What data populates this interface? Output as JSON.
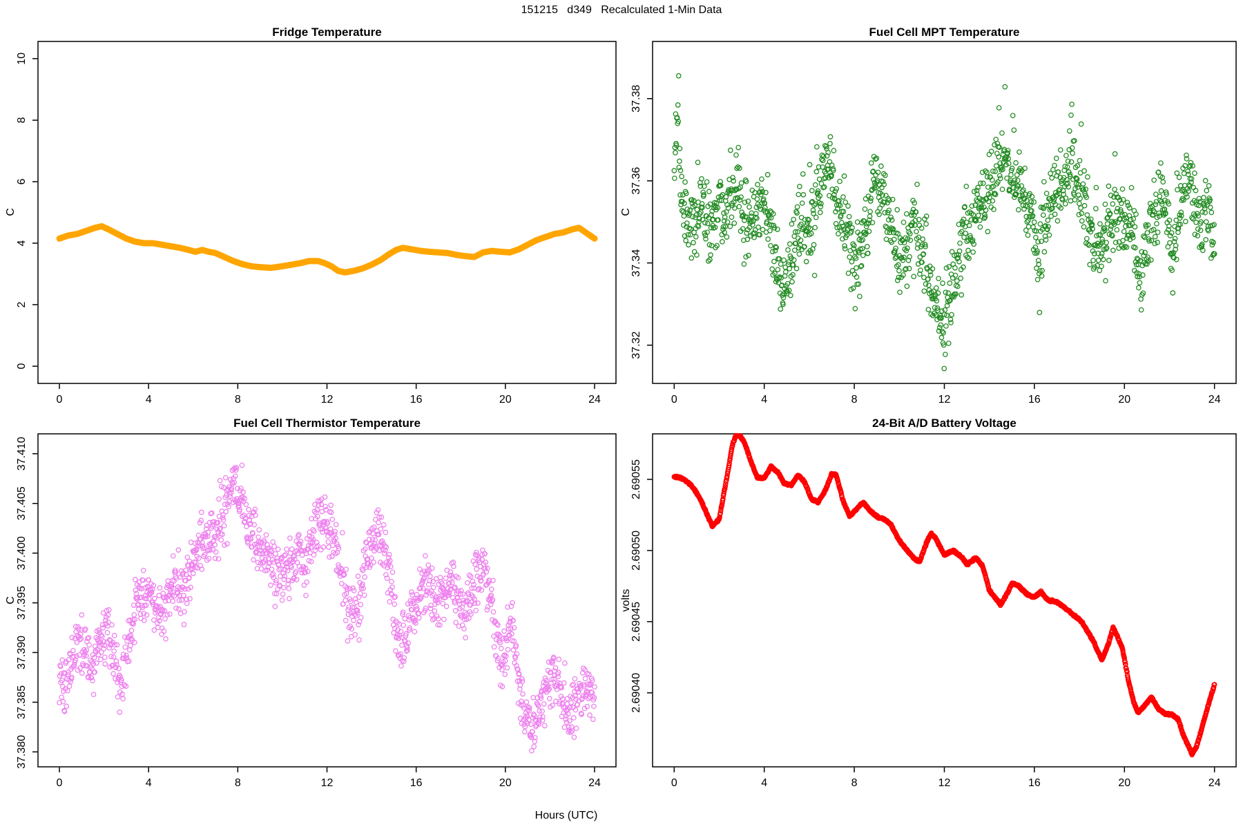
{
  "header": {
    "title": "151215   d349   Recalculated 1-Min Data"
  },
  "xlabel": "Hours (UTC)",
  "chart_data": [
    {
      "id": "fridge",
      "type": "line",
      "title": "Fridge Temperature",
      "ylabel": "C",
      "x_unit": "Hours (UTC)",
      "xlim": [
        -0.96,
        24.96
      ],
      "ylim": [
        -0.56,
        10.56
      ],
      "xticks": [
        0,
        4,
        8,
        12,
        16,
        20,
        24
      ],
      "xtick_labels": [
        "0",
        "4",
        "8",
        "12",
        "16",
        "20",
        "24"
      ],
      "yticks": [
        0,
        2,
        4,
        6,
        8,
        10
      ],
      "ytick_labels": [
        "0",
        "2",
        "4",
        "6",
        "8",
        "10"
      ],
      "color": "#FFA500",
      "line_width": 9,
      "n_points": 1440,
      "seed": 11,
      "noise": 0,
      "trend": {
        "x": [
          0,
          0.4,
          0.8,
          1.2,
          1.6,
          1.9,
          2.2,
          2.6,
          3,
          3.4,
          3.8,
          4.2,
          4.6,
          5,
          5.4,
          5.8,
          6.1,
          6.4,
          6.7,
          7,
          7.4,
          7.8,
          8.2,
          8.6,
          9,
          9.5,
          10,
          10.4,
          10.8,
          11.2,
          11.6,
          11.9,
          12.2,
          12.5,
          12.8,
          13.2,
          13.6,
          14,
          14.4,
          14.8,
          15.1,
          15.4,
          15.8,
          16.2,
          16.6,
          17,
          17.4,
          17.8,
          18.2,
          18.6,
          19,
          19.4,
          19.8,
          20.2,
          20.6,
          21,
          21.4,
          21.8,
          22.2,
          22.6,
          23,
          23.3,
          23.6,
          24
        ],
        "y": [
          4.15,
          4.25,
          4.3,
          4.4,
          4.5,
          4.55,
          4.45,
          4.3,
          4.15,
          4.05,
          4.0,
          4.0,
          3.95,
          3.9,
          3.85,
          3.78,
          3.72,
          3.78,
          3.72,
          3.68,
          3.55,
          3.42,
          3.32,
          3.25,
          3.22,
          3.2,
          3.25,
          3.3,
          3.35,
          3.42,
          3.42,
          3.35,
          3.25,
          3.1,
          3.05,
          3.1,
          3.18,
          3.3,
          3.45,
          3.65,
          3.78,
          3.85,
          3.8,
          3.75,
          3.72,
          3.7,
          3.68,
          3.62,
          3.58,
          3.55,
          3.7,
          3.75,
          3.72,
          3.7,
          3.8,
          3.95,
          4.1,
          4.2,
          4.3,
          4.35,
          4.45,
          4.5,
          4.35,
          4.15
        ]
      }
    },
    {
      "id": "mpt",
      "type": "scatter",
      "title": "Fuel Cell MPT Temperature",
      "ylabel": "C",
      "x_unit": "Hours (UTC)",
      "xlim": [
        -0.96,
        24.96
      ],
      "ylim": [
        37.3107,
        37.3939
      ],
      "xticks": [
        0,
        4,
        8,
        12,
        16,
        20,
        24
      ],
      "xtick_labels": [
        "0",
        "4",
        "8",
        "12",
        "16",
        "20",
        "24"
      ],
      "yticks": [
        37.32,
        37.34,
        37.36,
        37.38
      ],
      "ytick_labels": [
        "37.32",
        "37.34",
        "37.36",
        "37.38"
      ],
      "color": "#228B22",
      "marker": "open-circle",
      "marker_r": 3.2,
      "marker_lw": 1.3,
      "n_points": 1440,
      "seed": 42,
      "noise": 0.0095,
      "tail_up": {
        "p": 0.1,
        "amp": 0.012
      },
      "tail_down": {
        "p": 0.05,
        "amp": 0.01
      },
      "trend": {
        "x": [
          0,
          0.15,
          0.3,
          0.5,
          0.8,
          1,
          1.3,
          1.6,
          1.9,
          2.2,
          2.5,
          2.8,
          3,
          3.3,
          3.6,
          3.9,
          4.1,
          4.3,
          4.6,
          4.9,
          5.1,
          5.3,
          5.6,
          5.9,
          6.2,
          6.5,
          6.8,
          7,
          7.2,
          7.5,
          7.8,
          8,
          8.3,
          8.6,
          8.9,
          9.1,
          9.4,
          9.7,
          10,
          10.3,
          10.6,
          10.9,
          11.2,
          11.5,
          11.8,
          12,
          12.2,
          12.5,
          12.8,
          13.1,
          13.4,
          13.7,
          14,
          14.3,
          14.6,
          14.9,
          15.2,
          15.5,
          15.8,
          16,
          16.2,
          16.5,
          16.8,
          17.1,
          17.4,
          17.7,
          18,
          18.3,
          18.6,
          18.9,
          19.2,
          19.5,
          19.8,
          20.1,
          20.4,
          20.7,
          21,
          21.3,
          21.6,
          21.9,
          22.2,
          22.5,
          22.8,
          23.1,
          23.4,
          23.7,
          24
        ],
        "y": [
          37.362,
          37.375,
          37.355,
          37.352,
          37.348,
          37.35,
          37.352,
          37.348,
          37.355,
          37.35,
          37.355,
          37.36,
          37.352,
          37.348,
          37.35,
          37.355,
          37.352,
          37.345,
          37.34,
          37.332,
          37.338,
          37.345,
          37.35,
          37.348,
          37.352,
          37.36,
          37.365,
          37.362,
          37.355,
          37.348,
          37.342,
          37.338,
          37.344,
          37.35,
          37.362,
          37.358,
          37.352,
          37.348,
          37.34,
          37.342,
          37.35,
          37.345,
          37.338,
          37.332,
          37.326,
          37.322,
          37.33,
          37.338,
          37.344,
          37.348,
          37.352,
          37.354,
          37.358,
          37.362,
          37.366,
          37.362,
          37.36,
          37.356,
          37.352,
          37.348,
          37.338,
          37.35,
          37.356,
          37.358,
          37.36,
          37.362,
          37.358,
          37.35,
          37.346,
          37.342,
          37.346,
          37.35,
          37.352,
          37.35,
          37.346,
          37.336,
          37.344,
          37.352,
          37.356,
          37.35,
          37.342,
          37.356,
          37.36,
          37.355,
          37.35,
          37.352,
          37.348
        ]
      }
    },
    {
      "id": "thermistor",
      "type": "scatter",
      "title": "Fuel Cell Thermistor Temperature",
      "ylabel": "C",
      "x_unit": "Hours (UTC)",
      "xlim": [
        -0.96,
        24.96
      ],
      "ylim": [
        37.3785,
        37.412
      ],
      "xticks": [
        0,
        4,
        8,
        12,
        16,
        20,
        24
      ],
      "xtick_labels": [
        "0",
        "4",
        "8",
        "12",
        "16",
        "20",
        "24"
      ],
      "yticks": [
        37.38,
        37.385,
        37.39,
        37.395,
        37.4,
        37.405,
        37.41
      ],
      "ytick_labels": [
        "37.380",
        "37.385",
        "37.390",
        "37.395",
        "37.400",
        "37.405",
        "37.410"
      ],
      "color": "#EE82EE",
      "marker": "open-circle",
      "marker_r": 3.2,
      "marker_lw": 1.3,
      "n_points": 1440,
      "seed": 7,
      "noise": 0.0033,
      "tail_up": {
        "p": 0.06,
        "amp": 0.0026
      },
      "tail_down": {
        "p": 0.06,
        "amp": 0.0026
      },
      "trend": {
        "x": [
          0,
          0.3,
          0.6,
          0.9,
          1.2,
          1.5,
          1.8,
          2.1,
          2.4,
          2.7,
          3,
          3.3,
          3.6,
          3.9,
          4.2,
          4.5,
          4.8,
          5.1,
          5.4,
          5.7,
          6,
          6.3,
          6.6,
          6.9,
          7.2,
          7.5,
          7.8,
          8,
          8.3,
          8.6,
          8.9,
          9.2,
          9.5,
          9.8,
          10.1,
          10.4,
          10.7,
          11,
          11.3,
          11.6,
          11.9,
          12.2,
          12.5,
          12.8,
          13.1,
          13.4,
          13.7,
          14,
          14.3,
          14.6,
          14.9,
          15.2,
          15.5,
          15.8,
          16.1,
          16.4,
          16.7,
          17,
          17.3,
          17.6,
          17.9,
          18.2,
          18.5,
          18.8,
          19.1,
          19.4,
          19.7,
          20,
          20.3,
          20.6,
          20.9,
          21.2,
          21.5,
          21.8,
          22.1,
          22.4,
          22.7,
          23,
          23.3,
          23.6,
          24
        ],
        "y": [
          37.388,
          37.386,
          37.389,
          37.391,
          37.39,
          37.388,
          37.391,
          37.392,
          37.39,
          37.387,
          37.39,
          37.393,
          37.395,
          37.396,
          37.395,
          37.394,
          37.396,
          37.397,
          37.396,
          37.397,
          37.399,
          37.401,
          37.402,
          37.401,
          37.403,
          37.405,
          37.407,
          37.406,
          37.404,
          37.402,
          37.401,
          37.4,
          37.399,
          37.398,
          37.398,
          37.399,
          37.4,
          37.398,
          37.401,
          37.404,
          37.403,
          37.402,
          37.4,
          37.396,
          37.393,
          37.395,
          37.398,
          37.401,
          37.402,
          37.401,
          37.396,
          37.392,
          37.391,
          37.394,
          37.396,
          37.397,
          37.396,
          37.395,
          37.396,
          37.397,
          37.395,
          37.394,
          37.396,
          37.398,
          37.399,
          37.395,
          37.39,
          37.389,
          37.393,
          37.387,
          37.383,
          37.382,
          37.384,
          37.386,
          37.388,
          37.387,
          37.384,
          37.384,
          37.386,
          37.387,
          37.385
        ]
      }
    },
    {
      "id": "voltage",
      "type": "scatter",
      "title": "24-Bit A/D Battery Voltage",
      "ylabel": "volts",
      "x_unit": "Hours (UTC)",
      "xlim": [
        -0.96,
        24.96
      ],
      "ylim": [
        2.690348,
        2.690582
      ],
      "xticks": [
        0,
        4,
        8,
        12,
        16,
        20,
        24
      ],
      "xtick_labels": [
        "0",
        "4",
        "8",
        "12",
        "16",
        "20",
        "24"
      ],
      "yticks": [
        2.6904,
        2.69045,
        2.6905,
        2.69055
      ],
      "ytick_labels": [
        "2.69040",
        "2.69045",
        "2.69050",
        "2.69055"
      ],
      "color": "#FF0000",
      "marker": "open-circle",
      "marker_r": 3,
      "marker_lw": 1.6,
      "n_points": 1440,
      "seed": 3,
      "noise": 8e-07,
      "trend": {
        "x": [
          0,
          0.3,
          0.6,
          0.9,
          1.2,
          1.5,
          1.7,
          2,
          2.3,
          2.6,
          2.8,
          3.1,
          3.4,
          3.7,
          4,
          4.3,
          4.6,
          4.9,
          5.2,
          5.5,
          5.8,
          6.1,
          6.4,
          6.7,
          7,
          7.2,
          7.5,
          7.8,
          8.1,
          8.4,
          8.7,
          9,
          9.3,
          9.6,
          10,
          10.4,
          10.7,
          10.9,
          11.2,
          11.4,
          11.6,
          12,
          12.4,
          12.8,
          13,
          13.4,
          13.7,
          14,
          14.5,
          14.8,
          15,
          15.3,
          15.7,
          16,
          16.3,
          16.6,
          17,
          17.4,
          17.8,
          18.1,
          18.6,
          19,
          19.3,
          19.5,
          19.9,
          20.2,
          20.4,
          20.6,
          21,
          21.2,
          21.5,
          21.8,
          22.1,
          22.4,
          22.6,
          23,
          23.2,
          23.4,
          23.7,
          24
        ],
        "y": [
          2.690552,
          2.690551,
          2.690548,
          2.690543,
          2.690535,
          2.690524,
          2.690517,
          2.690522,
          2.690548,
          2.690575,
          2.690583,
          2.690577,
          2.690563,
          2.690551,
          2.690551,
          2.690559,
          2.690555,
          2.690547,
          2.690546,
          2.690553,
          2.690548,
          2.690536,
          2.690534,
          2.690542,
          2.690554,
          2.690553,
          2.690535,
          2.690524,
          2.690529,
          2.690534,
          2.690528,
          2.690524,
          2.690522,
          2.690519,
          2.690507,
          2.690499,
          2.690494,
          2.690492,
          2.690505,
          2.690512,
          2.690509,
          2.690497,
          2.6905,
          2.690495,
          2.69049,
          2.690495,
          2.690489,
          2.690472,
          2.690462,
          2.69047,
          2.690477,
          2.690475,
          2.690469,
          2.690467,
          2.690471,
          2.690465,
          2.690464,
          2.690459,
          2.690454,
          2.69045,
          2.690437,
          2.690423,
          2.690435,
          2.690446,
          2.690432,
          2.690407,
          2.690394,
          2.690386,
          2.690393,
          2.690397,
          2.690389,
          2.690385,
          2.690385,
          2.690381,
          2.690371,
          2.690357,
          2.690362,
          2.690373,
          2.69039,
          2.690406
        ]
      }
    }
  ]
}
